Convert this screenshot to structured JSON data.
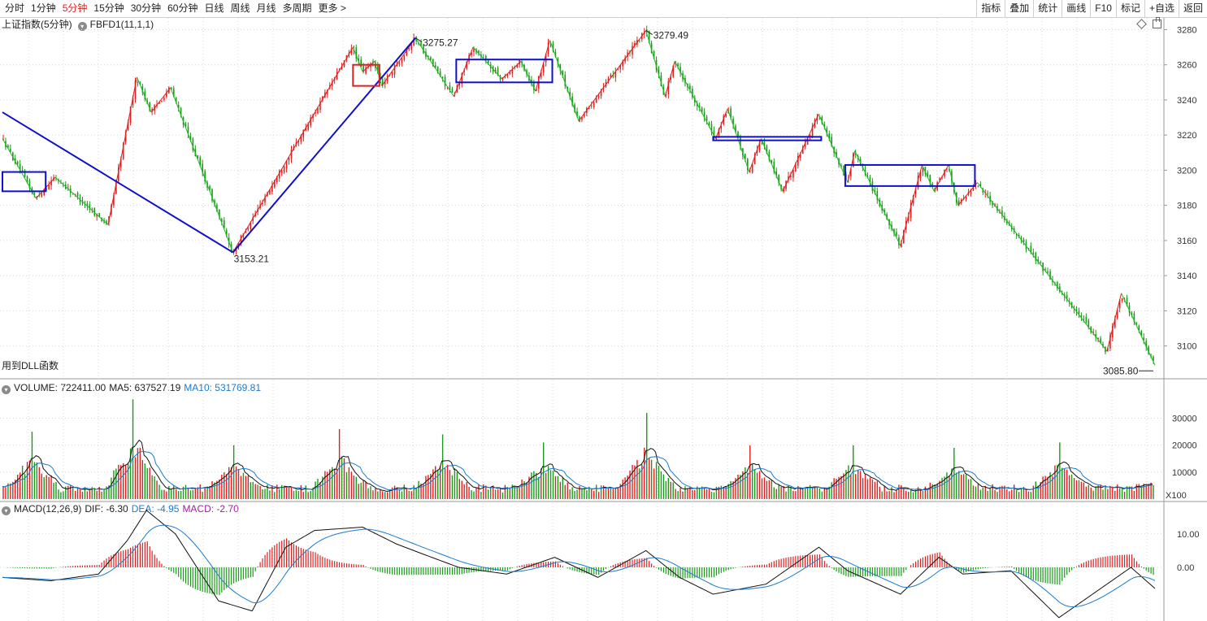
{
  "toolbar": {
    "periods": [
      "分时",
      "1分钟",
      "5分钟",
      "15分钟",
      "30分钟",
      "60分钟",
      "日线",
      "周线",
      "月线",
      "多周期",
      "更多 >"
    ],
    "active_period": "5分钟",
    "buttons": [
      "指标",
      "叠加",
      "统计",
      "画线",
      "F10",
      "标记",
      "+自选",
      "返回"
    ]
  },
  "main_panel": {
    "title": "上证指数(5分钟)",
    "indicator": "FBFD1(11,1,1)",
    "footnote": "用到DLL函数"
  },
  "volume_panel": {
    "label": "VOLUME: 722411.00",
    "ma5": "MA5: 637527.19",
    "ma10": "MA10: 531769.81",
    "unit": "X100"
  },
  "macd_panel": {
    "label": "MACD(12,26,9)",
    "dif": "DIF: -6.30",
    "dea": "DEA: -4.95",
    "macd": "MACD: -2.70"
  },
  "colors": {
    "up": "#e02020",
    "down": "#1a9a1a",
    "zigzag_up": "#e02020",
    "zigzag_down": "#22bb22",
    "blue": "#1010cc",
    "ma10": "#1a7ad0",
    "grid": "#d8d8d8",
    "macd_dea": "#1a7ad0",
    "macd_label": "#a020a0"
  },
  "chart_data": [
    {
      "type": "line",
      "name": "price",
      "y_ticks": [
        3280,
        3260,
        3240,
        3220,
        3200,
        3180,
        3160,
        3140,
        3120,
        3100
      ],
      "ylim": [
        3085,
        3283
      ],
      "x_count": 480,
      "zigzag": [
        {
          "i": 0,
          "v": 3218
        },
        {
          "i": 14,
          "v": 3184
        },
        {
          "i": 22,
          "v": 3196
        },
        {
          "i": 44,
          "v": 3169
        },
        {
          "i": 56,
          "v": 3253
        },
        {
          "i": 62,
          "v": 3233
        },
        {
          "i": 70,
          "v": 3247
        },
        {
          "i": 96,
          "v": 3153.21
        },
        {
          "i": 146,
          "v": 3270
        },
        {
          "i": 150,
          "v": 3256
        },
        {
          "i": 155,
          "v": 3262
        },
        {
          "i": 158,
          "v": 3248
        },
        {
          "i": 172,
          "v": 3275.27
        },
        {
          "i": 188,
          "v": 3242
        },
        {
          "i": 196,
          "v": 3270
        },
        {
          "i": 208,
          "v": 3252
        },
        {
          "i": 216,
          "v": 3262
        },
        {
          "i": 222,
          "v": 3245
        },
        {
          "i": 228,
          "v": 3274
        },
        {
          "i": 240,
          "v": 3228
        },
        {
          "i": 268,
          "v": 3279.49
        },
        {
          "i": 276,
          "v": 3242
        },
        {
          "i": 280,
          "v": 3262
        },
        {
          "i": 297,
          "v": 3218
        },
        {
          "i": 302,
          "v": 3235
        },
        {
          "i": 311,
          "v": 3199
        },
        {
          "i": 316,
          "v": 3218
        },
        {
          "i": 325,
          "v": 3188
        },
        {
          "i": 340,
          "v": 3232
        },
        {
          "i": 352,
          "v": 3193
        },
        {
          "i": 355,
          "v": 3211
        },
        {
          "i": 374,
          "v": 3157
        },
        {
          "i": 383,
          "v": 3203
        },
        {
          "i": 388,
          "v": 3188
        },
        {
          "i": 394,
          "v": 3203
        },
        {
          "i": 398,
          "v": 3180
        },
        {
          "i": 406,
          "v": 3193
        },
        {
          "i": 460,
          "v": 3097
        },
        {
          "i": 466,
          "v": 3130
        },
        {
          "i": 480,
          "v": 3089
        }
      ],
      "annotations": [
        {
          "text": "3275.27",
          "i": 172,
          "v": 3275.27
        },
        {
          "text": "3279.49",
          "i": 268,
          "v": 3279.49
        },
        {
          "text": "3153.21",
          "i": 96,
          "v": 3153.21
        },
        {
          "text": "3085.80",
          "i": 480,
          "v": 3085.8
        }
      ],
      "blue_lines": [
        {
          "from": {
            "i": 0,
            "v": 3233
          },
          "to": {
            "i": 96,
            "v": 3153.21
          }
        },
        {
          "from": {
            "i": 96,
            "v": 3153.21
          },
          "to": {
            "i": 172,
            "v": 3275.27
          }
        }
      ],
      "boxes": [
        {
          "color": "blue",
          "i1": 0,
          "i2": 18,
          "v1": 3199,
          "v2": 3188
        },
        {
          "color": "red",
          "i1": 146,
          "i2": 157,
          "v1": 3260,
          "v2": 3248
        },
        {
          "color": "blue",
          "i1": 189,
          "i2": 229,
          "v1": 3263,
          "v2": 3250
        },
        {
          "color": "blue",
          "i1": 296,
          "i2": 341,
          "v1": 3219,
          "v2": 3217
        },
        {
          "color": "blue",
          "i1": 351,
          "i2": 405,
          "v1": 3203,
          "v2": 3191
        }
      ]
    },
    {
      "type": "bar",
      "name": "volume",
      "y_ticks": [
        30000,
        20000,
        10000
      ],
      "ylim": [
        0,
        38000
      ],
      "spikes": [
        {
          "i": 12,
          "v": 25000
        },
        {
          "i": 54,
          "v": 37000
        },
        {
          "i": 96,
          "v": 20000
        },
        {
          "i": 140,
          "v": 26000
        },
        {
          "i": 183,
          "v": 24000
        },
        {
          "i": 225,
          "v": 21000
        },
        {
          "i": 268,
          "v": 32000
        },
        {
          "i": 311,
          "v": 20000
        },
        {
          "i": 354,
          "v": 20000
        },
        {
          "i": 396,
          "v": 19000
        },
        {
          "i": 440,
          "v": 21000
        },
        {
          "i": 480,
          "v": 7224
        }
      ],
      "last_volume": 722411.0,
      "ma5": 637527.19,
      "ma10": 531769.81
    },
    {
      "type": "bar",
      "name": "macd",
      "y_ticks": [
        10.0,
        0.0
      ],
      "ylim": [
        -16,
        16
      ],
      "dif_keys": [
        {
          "i": 0,
          "v": -3
        },
        {
          "i": 20,
          "v": -4
        },
        {
          "i": 40,
          "v": -2
        },
        {
          "i": 52,
          "v": 8
        },
        {
          "i": 60,
          "v": 17
        },
        {
          "i": 72,
          "v": 10
        },
        {
          "i": 90,
          "v": -10
        },
        {
          "i": 104,
          "v": -13
        },
        {
          "i": 118,
          "v": 6
        },
        {
          "i": 130,
          "v": 11
        },
        {
          "i": 150,
          "v": 12
        },
        {
          "i": 164,
          "v": 7
        },
        {
          "i": 175,
          "v": 4
        },
        {
          "i": 190,
          "v": 0
        },
        {
          "i": 210,
          "v": -2
        },
        {
          "i": 230,
          "v": 3
        },
        {
          "i": 248,
          "v": -3
        },
        {
          "i": 268,
          "v": 5
        },
        {
          "i": 282,
          "v": -3
        },
        {
          "i": 296,
          "v": -8
        },
        {
          "i": 318,
          "v": -5
        },
        {
          "i": 340,
          "v": 6
        },
        {
          "i": 352,
          "v": -1
        },
        {
          "i": 374,
          "v": -8
        },
        {
          "i": 390,
          "v": 3
        },
        {
          "i": 400,
          "v": -2
        },
        {
          "i": 420,
          "v": -1
        },
        {
          "i": 440,
          "v": -15
        },
        {
          "i": 458,
          "v": -6
        },
        {
          "i": 470,
          "v": 0
        },
        {
          "i": 480,
          "v": -6.3
        }
      ],
      "dif": -6.3,
      "dea": -4.95,
      "macd": -2.7
    }
  ]
}
